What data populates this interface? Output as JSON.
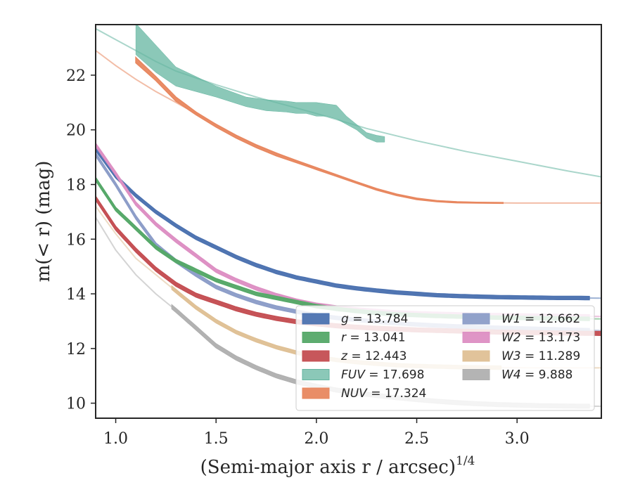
{
  "chart_data": {
    "type": "line",
    "xlabel": "(Semi-major axis r / arcsec)",
    "xlabel_sup": "1/4",
    "ylabel": "m(< r) (mag)",
    "xlim": [
      0.9,
      3.42
    ],
    "ylim": [
      23.85,
      9.45
    ],
    "y_inverted": true,
    "x_ticks": [
      1.0,
      1.5,
      2.0,
      2.5,
      3.0
    ],
    "x_tick_labels": [
      "1.0",
      "1.5",
      "2.0",
      "2.5",
      "3.0"
    ],
    "y_ticks": [
      10,
      12,
      14,
      16,
      18,
      20,
      22
    ],
    "y_tick_labels": [
      "10",
      "12",
      "14",
      "16",
      "18",
      "20",
      "22"
    ],
    "grid": false,
    "legend_position": "lower-right",
    "series": [
      {
        "name": "g = 13.784",
        "color": "#4c72b0",
        "x": [
          0.9,
          1.0,
          1.1,
          1.2,
          1.3,
          1.4,
          1.5,
          1.6,
          1.7,
          1.8,
          1.9,
          2.0,
          2.1,
          2.2,
          2.3,
          2.4,
          2.5,
          2.6,
          2.7,
          2.8,
          2.9,
          3.0,
          3.1,
          3.2,
          3.3,
          3.42
        ],
        "y": [
          19.3,
          18.3,
          17.6,
          17.0,
          16.5,
          16.05,
          15.7,
          15.35,
          15.05,
          14.8,
          14.6,
          14.45,
          14.3,
          14.2,
          14.12,
          14.05,
          14.0,
          13.95,
          13.92,
          13.9,
          13.88,
          13.87,
          13.86,
          13.85,
          13.85,
          13.84
        ],
        "band": 0.06,
        "solid_until": 3.36
      },
      {
        "name": "r = 13.041",
        "color": "#55a868",
        "x": [
          0.9,
          1.0,
          1.1,
          1.2,
          1.3,
          1.4,
          1.5,
          1.6,
          1.7,
          1.8,
          1.9,
          2.0,
          2.1,
          2.2,
          2.3,
          2.4,
          2.5,
          2.6,
          2.7,
          2.8,
          2.9,
          3.0,
          3.1,
          3.2,
          3.3,
          3.42
        ],
        "y": [
          18.2,
          17.1,
          16.4,
          15.7,
          15.2,
          14.85,
          14.5,
          14.25,
          14.0,
          13.85,
          13.7,
          13.55,
          13.45,
          13.37,
          13.3,
          13.25,
          13.22,
          13.19,
          13.17,
          13.15,
          13.13,
          13.12,
          13.11,
          13.1,
          13.09,
          13.08
        ],
        "band": 0.06,
        "solid_until": 3.36
      },
      {
        "name": "z = 12.443",
        "color": "#c44e52",
        "x": [
          0.9,
          1.0,
          1.1,
          1.2,
          1.3,
          1.4,
          1.5,
          1.6,
          1.7,
          1.8,
          1.9,
          2.0,
          2.1,
          2.2,
          2.3,
          2.4,
          2.5,
          2.6,
          2.7,
          2.8,
          2.9,
          3.0,
          3.1,
          3.2,
          3.3,
          3.42
        ],
        "y": [
          17.5,
          16.4,
          15.6,
          14.9,
          14.35,
          13.95,
          13.7,
          13.45,
          13.25,
          13.1,
          12.98,
          12.9,
          12.83,
          12.78,
          12.74,
          12.71,
          12.68,
          12.66,
          12.64,
          12.62,
          12.6,
          12.59,
          12.58,
          12.57,
          12.56,
          12.55
        ],
        "band": 0.07,
        "solid_until": 3.42
      },
      {
        "name": "FUV = 17.698",
        "color": "#64b5a0",
        "x": [
          0.9,
          1.0,
          1.1,
          1.2,
          1.3,
          1.5,
          1.7,
          2.0,
          2.25,
          2.5,
          2.75,
          3.0,
          3.25,
          3.42
        ],
        "y": [
          23.7,
          23.3,
          22.9,
          22.5,
          22.15,
          21.65,
          21.2,
          20.6,
          20.05,
          19.6,
          19.2,
          18.85,
          18.5,
          18.28
        ],
        "band_x": [
          1.1,
          1.2,
          1.3,
          1.5,
          1.65,
          1.75,
          1.85,
          1.9,
          1.95,
          2.0,
          2.05,
          2.1,
          2.15,
          2.2,
          2.25,
          2.3,
          2.34
        ],
        "band_upper": [
          22.75,
          22.1,
          21.6,
          21.2,
          20.85,
          20.7,
          20.65,
          20.6,
          20.6,
          20.5,
          20.5,
          20.4,
          20.2,
          20.0,
          19.7,
          19.55,
          19.55
        ],
        "band_lower": [
          23.9,
          23.1,
          22.3,
          21.6,
          21.2,
          21.1,
          21.05,
          21.0,
          21.0,
          21.0,
          20.95,
          20.9,
          20.5,
          20.2,
          19.9,
          19.8,
          19.75
        ]
      },
      {
        "name": "NUV = 17.324",
        "color": "#e8875f",
        "x": [
          0.9,
          1.0,
          1.1,
          1.2,
          1.3,
          1.4,
          1.5,
          1.6,
          1.7,
          1.8,
          1.9,
          2.0,
          2.1,
          2.2,
          2.3,
          2.4,
          2.5,
          2.6,
          2.7,
          2.8,
          2.9,
          3.0,
          3.1,
          3.2,
          3.3,
          3.42
        ],
        "y": [
          22.9,
          22.35,
          21.85,
          21.4,
          21.0,
          20.6,
          20.2,
          19.8,
          19.45,
          19.15,
          18.85,
          18.55,
          18.3,
          18.05,
          17.8,
          17.6,
          17.48,
          17.4,
          17.36,
          17.34,
          17.33,
          17.32,
          17.32,
          17.32,
          17.32,
          17.32
        ],
        "band_x": [
          1.1,
          1.2,
          1.3,
          1.4,
          1.5,
          1.6,
          1.7,
          1.8,
          1.9,
          2.0,
          2.1,
          2.2,
          2.3,
          2.4,
          2.5,
          2.6,
          2.7,
          2.8,
          2.93
        ],
        "band_upper": [
          22.45,
          21.8,
          21.05,
          20.55,
          20.1,
          19.7,
          19.35,
          19.05,
          18.8,
          18.55,
          18.3,
          18.05,
          17.8,
          17.6,
          17.45,
          17.37,
          17.33,
          17.32,
          17.31
        ],
        "band_lower": [
          22.65,
          21.95,
          21.2,
          20.65,
          20.2,
          19.8,
          19.45,
          19.15,
          18.88,
          18.62,
          18.36,
          18.1,
          17.85,
          17.65,
          17.5,
          17.41,
          17.37,
          17.35,
          17.34
        ]
      },
      {
        "name": "W1 = 12.662",
        "color": "#8c9dc8",
        "x": [
          0.9,
          1.0,
          1.1,
          1.2,
          1.3,
          1.4,
          1.5,
          1.6,
          1.7,
          1.8,
          1.9,
          2.0,
          2.1,
          2.2,
          2.3,
          2.4,
          2.5,
          2.6,
          2.7,
          2.8,
          2.9,
          3.0,
          3.1,
          3.2,
          3.3,
          3.42
        ],
        "y": [
          19.1,
          18.0,
          16.8,
          15.8,
          15.2,
          14.7,
          14.25,
          13.95,
          13.7,
          13.5,
          13.35,
          13.22,
          13.12,
          13.05,
          12.98,
          12.93,
          12.88,
          12.84,
          12.81,
          12.78,
          12.76,
          12.74,
          12.72,
          12.7,
          12.68,
          12.66
        ],
        "band": 0.06,
        "solid_until": 3.36
      },
      {
        "name": "W2 = 13.173",
        "color": "#dd8fc3",
        "x": [
          0.9,
          1.0,
          1.1,
          1.2,
          1.3,
          1.4,
          1.5,
          1.6,
          1.7,
          1.8,
          1.9,
          2.0,
          2.1,
          2.2,
          2.3,
          2.4,
          2.5,
          2.6,
          2.7,
          2.8,
          2.9,
          3.0,
          3.1,
          3.2,
          3.3,
          3.42
        ],
        "y": [
          19.45,
          18.4,
          17.3,
          16.55,
          15.95,
          15.4,
          14.85,
          14.5,
          14.2,
          13.95,
          13.75,
          13.6,
          13.5,
          13.43,
          13.37,
          13.32,
          13.29,
          13.27,
          13.25,
          13.23,
          13.22,
          13.21,
          13.2,
          13.19,
          13.18,
          13.17
        ],
        "band": 0.06,
        "solid_until": 3.36
      },
      {
        "name": "W3 = 11.289",
        "color": "#dfc095",
        "x": [
          0.9,
          1.0,
          1.1,
          1.2,
          1.3,
          1.4,
          1.5,
          1.6,
          1.7,
          1.8,
          1.9,
          2.0,
          2.1,
          2.2,
          2.3,
          2.4,
          2.5,
          2.6,
          2.7,
          2.8,
          2.9,
          3.0,
          3.1,
          3.2,
          3.3,
          3.42
        ],
        "y": [
          17.2,
          16.2,
          15.3,
          14.7,
          14.1,
          13.5,
          13.0,
          12.6,
          12.3,
          12.05,
          11.85,
          11.7,
          11.58,
          11.5,
          11.44,
          11.39,
          11.36,
          11.34,
          11.32,
          11.31,
          11.3,
          11.3,
          11.29,
          11.29,
          11.29,
          11.29
        ],
        "band": 0.06,
        "solid_until": 2.93
      },
      {
        "name": "W4 = 9.888",
        "color": "#b0b0b0",
        "x": [
          0.9,
          1.0,
          1.1,
          1.2,
          1.3,
          1.4,
          1.5,
          1.6,
          1.7,
          1.8,
          1.9,
          2.0,
          2.1,
          2.2,
          2.3,
          2.4,
          2.5,
          2.6,
          2.7,
          2.8,
          2.9,
          3.0,
          3.1,
          3.2,
          3.3,
          3.42
        ],
        "y": [
          16.8,
          15.6,
          14.7,
          14.0,
          13.4,
          12.75,
          12.1,
          11.65,
          11.3,
          11.0,
          10.78,
          10.62,
          10.48,
          10.37,
          10.28,
          10.2,
          10.13,
          10.07,
          10.02,
          9.98,
          9.95,
          9.93,
          9.91,
          9.9,
          9.89,
          9.888
        ],
        "band": 0.07,
        "solid_until": 3.36
      }
    ]
  }
}
